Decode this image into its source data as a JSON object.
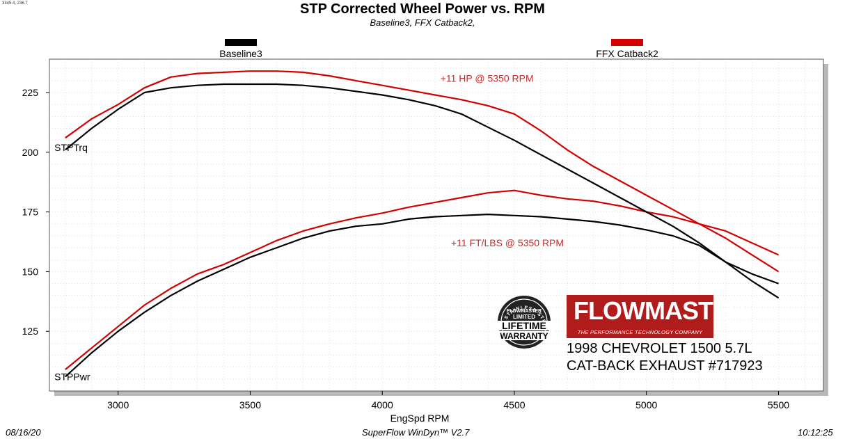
{
  "corner_info": "3345.4, 236.7",
  "footer": {
    "date": "08/16/20",
    "software": "SuperFlow WinDyn™ V2.7",
    "time": "10:12:25"
  },
  "warranty_badge": {
    "ring_text": "STAINLESS STEEL",
    "brand": "FLOWMASTER",
    "line1": "LIMITED",
    "line2": "LIFETIME",
    "line3": "WARRANTY"
  },
  "logo": {
    "brand": "FLOWMASTER",
    "tagline": "THE PERFORMANCE TECHNOLOGY COMPANY"
  },
  "vehicle": {
    "line1": "1998 CHEVROLET 1500 5.7L",
    "line2": "CAT-BACK EXHAUST #717923"
  },
  "colors": {
    "baseline": "#000000",
    "catback": "#d40000",
    "annotation": "#cc2a2a",
    "logo_bg": "#b01c1c"
  },
  "chart_data": {
    "type": "line",
    "title": "STP Corrected Wheel Power vs. RPM",
    "subtitle": "Baseline3, FFX Catback2,",
    "xlabel": "EngSpd  RPM",
    "ylabel": "",
    "xlim": [
      2740,
      5670
    ],
    "ylim": [
      100,
      239
    ],
    "xticks": [
      3000,
      3500,
      4000,
      4500,
      5000,
      5500
    ],
    "yticks": [
      125,
      150,
      175,
      200,
      225
    ],
    "grid": true,
    "legend": [
      {
        "name": "Baseline3",
        "color": "#000000"
      },
      {
        "name": "FFX Catback2",
        "color": "#d40000"
      }
    ],
    "curve_labels": [
      {
        "text": "STPTrq",
        "x": 2780,
        "y": 202
      },
      {
        "text": "STPPwr",
        "x": 2780,
        "y": 106
      }
    ],
    "annotations": [
      {
        "text": "+11 HP @ 5350 RPM",
        "x": 4220,
        "y": 231
      },
      {
        "text": "+11 FT/LBS @ 5350 RPM",
        "x": 4260,
        "y": 162
      }
    ],
    "x": [
      2800,
      2900,
      3000,
      3100,
      3200,
      3300,
      3400,
      3500,
      3600,
      3700,
      3800,
      3900,
      4000,
      4100,
      4200,
      4300,
      4400,
      4500,
      4600,
      4700,
      4800,
      4900,
      5000,
      5100,
      5200,
      5300,
      5400,
      5500
    ],
    "series": [
      {
        "name": "Baseline3",
        "group": "torque",
        "color": "#000000",
        "values": [
          201,
          210,
          218,
          225,
          227,
          228,
          228.5,
          228.5,
          228.5,
          228,
          227,
          225.5,
          224,
          222,
          219.5,
          216,
          210.5,
          205,
          199,
          193,
          187,
          181,
          175,
          169,
          162,
          154,
          146,
          139
        ]
      },
      {
        "name": "FFX Catback2",
        "group": "torque",
        "color": "#d40000",
        "values": [
          206,
          214,
          220,
          227,
          231.5,
          233,
          233.5,
          234,
          234,
          233.5,
          232,
          230,
          228,
          226,
          224,
          222,
          219.5,
          216,
          209,
          201,
          194,
          188,
          182,
          176,
          170,
          164,
          157,
          150
        ]
      },
      {
        "name": "Baseline3",
        "group": "power",
        "color": "#000000",
        "values": [
          106,
          116,
          125,
          133,
          140,
          146,
          151,
          156,
          160,
          164,
          167,
          169,
          170,
          172,
          173,
          173.5,
          174,
          173.5,
          173,
          172,
          171,
          169.5,
          167.5,
          165,
          161,
          154,
          149,
          145
        ]
      },
      {
        "name": "FFX Catback2",
        "group": "power",
        "color": "#d40000",
        "values": [
          109,
          118,
          127,
          136,
          143,
          149,
          153,
          158,
          163,
          167,
          170,
          172.5,
          174.5,
          177,
          179,
          181,
          183,
          184,
          182,
          180.5,
          179.5,
          177.5,
          175,
          173,
          170,
          167,
          162,
          157
        ]
      }
    ]
  }
}
